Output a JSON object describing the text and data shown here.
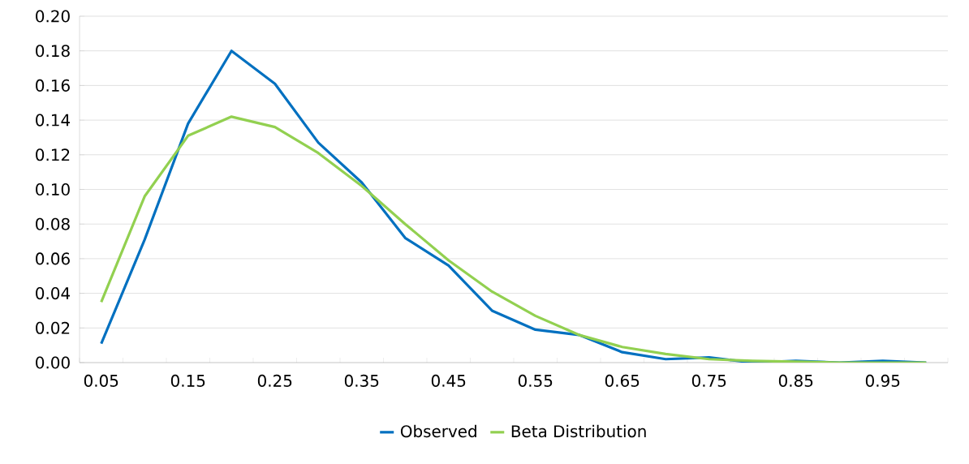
{
  "chart_data": {
    "type": "line",
    "categories": [
      "0.05",
      null,
      "0.15",
      null,
      "0.25",
      null,
      "0.35",
      null,
      "0.45",
      null,
      "0.55",
      null,
      "0.65",
      null,
      "0.75",
      null,
      "0.85",
      null,
      "0.95",
      null
    ],
    "series": [
      {
        "name": "Observed",
        "color": "#0070c0",
        "values": [
          0.011,
          0.071,
          0.138,
          0.18,
          0.161,
          0.127,
          0.104,
          0.072,
          0.056,
          0.03,
          0.019,
          0.016,
          0.006,
          0.002,
          0.003,
          0.0,
          0.001,
          0.0,
          0.001,
          0.0
        ]
      },
      {
        "name": "Beta Distribution",
        "color": "#92d050",
        "values": [
          0.035,
          0.096,
          0.131,
          0.142,
          0.136,
          0.121,
          0.102,
          0.08,
          0.059,
          0.041,
          0.027,
          0.016,
          0.009,
          0.005,
          0.002,
          0.001,
          0.0005,
          0.0,
          0.0,
          0.0
        ]
      }
    ],
    "ylim": [
      0,
      0.2
    ],
    "yticks": [
      {
        "value": 0,
        "label": "0.00"
      },
      {
        "value": 0.02,
        "label": "0.02"
      },
      {
        "value": 0.04,
        "label": "0.04"
      },
      {
        "value": 0.06,
        "label": "0.06"
      },
      {
        "value": 0.08,
        "label": "0.08"
      },
      {
        "value": 0.1,
        "label": "0.10"
      },
      {
        "value": 0.12,
        "label": "0.12"
      },
      {
        "value": 0.14,
        "label": "0.14"
      },
      {
        "value": 0.16,
        "label": "0.16"
      },
      {
        "value": 0.18,
        "label": "0.18"
      },
      {
        "value": 0.2,
        "label": "0.20"
      }
    ],
    "grid": "y",
    "legend": "bottom",
    "marker": "none",
    "line_style": "solid"
  }
}
